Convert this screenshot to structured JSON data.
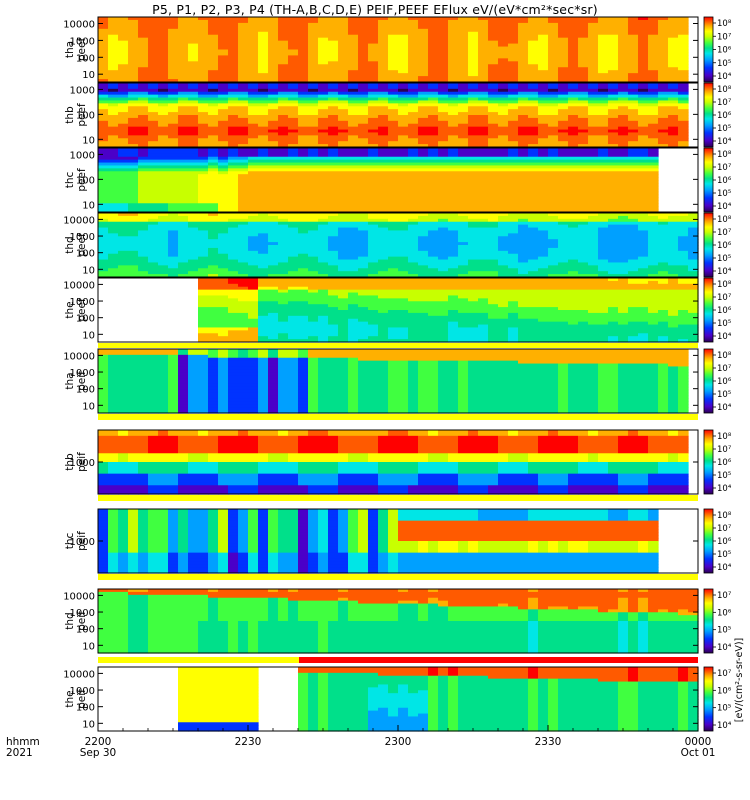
{
  "title": "P5, P1, P2, P3, P4 (TH-A,B,C,D,E) PEIF,PEEF EFlux eV/(eV*cm²*sec*sr)",
  "colors": {
    "colormap": [
      "#2a0054",
      "#4b00c8",
      "#0033ff",
      "#00a0ff",
      "#00e6e6",
      "#00e08a",
      "#40ff40",
      "#c8ff00",
      "#ffff00",
      "#ffb000",
      "#ff5a00",
      "#ff0000"
    ],
    "bar_yellow": "#ffff00",
    "bar_red": "#ff0000"
  },
  "x_axis": {
    "row_label_1": "hhmm",
    "row_label_2": "2021",
    "ticks": [
      {
        "label": "2200",
        "date": "Sep 30",
        "min": 0
      },
      {
        "label": "2230",
        "date": "",
        "min": 30
      },
      {
        "label": "2300",
        "date": "",
        "min": 60
      },
      {
        "label": "2330",
        "date": "",
        "min": 90
      },
      {
        "label": "0000",
        "date": "Oct 01",
        "min": 120
      }
    ]
  },
  "colorbar_unit_text": "[eV/(cm²-s-sr-eV)]",
  "chart_data": {
    "type": "heatmap",
    "x_range_minutes": [
      0,
      120
    ],
    "panels": [
      {
        "probe": "tha",
        "species": "peef",
        "ylabel_1": "tha",
        "ylabel_2": "peef",
        "y_ticks": [
          "10",
          "100",
          "1000",
          "10000"
        ],
        "cbar_labels": [
          "10⁴",
          "10⁵",
          "10⁶",
          "10⁷",
          "10⁸"
        ],
        "scale": "log",
        "bar": "none",
        "pattern": "tha_e"
      },
      {
        "probe": "thb",
        "species": "peef",
        "ylabel_1": "thb",
        "ylabel_2": "peef",
        "y_ticks": [
          "10",
          "100",
          "1000"
        ],
        "cbar_labels": [
          "10⁴",
          "10⁵",
          "10⁶",
          "10⁷",
          "10⁸"
        ],
        "scale": "log",
        "bar": "none",
        "pattern": "thb_e"
      },
      {
        "probe": "thc",
        "species": "peef",
        "ylabel_1": "thc",
        "ylabel_2": "peef",
        "y_ticks": [
          "10",
          "100",
          "1000"
        ],
        "cbar_labels": [
          "10⁴",
          "10⁵",
          "10⁶",
          "10⁷",
          "10⁸"
        ],
        "scale": "log",
        "bar": "none",
        "pattern": "thc_e"
      },
      {
        "probe": "thd",
        "species": "peef",
        "ylabel_1": "thd",
        "ylabel_2": "peef",
        "y_ticks": [
          "10",
          "100",
          "1000",
          "10000"
        ],
        "cbar_labels": [
          "10⁴",
          "10⁵",
          "10⁶",
          "10⁷",
          "10⁸"
        ],
        "scale": "log",
        "bar": "none",
        "pattern": "thd_e"
      },
      {
        "probe": "the",
        "species": "peef",
        "ylabel_1": "the",
        "ylabel_2": "peef",
        "y_ticks": [
          "10",
          "100",
          "1000",
          "10000"
        ],
        "cbar_labels": [
          "10⁴",
          "10⁵",
          "10⁶",
          "10⁷",
          "10⁸"
        ],
        "scale": "log",
        "bar": "yellow",
        "pattern": "the_e"
      },
      {
        "probe": "tha",
        "species": "peif",
        "ylabel_1": "tha",
        "ylabel_2": "peif",
        "y_ticks": [
          "10",
          "100",
          "1000",
          "10000"
        ],
        "cbar_labels": [
          "10⁴",
          "10⁵",
          "10⁶",
          "10⁷",
          "10⁸"
        ],
        "scale": "log",
        "bar": "yellow",
        "pattern": "tha_i"
      },
      {
        "probe": "thb",
        "species": "peif",
        "ylabel_1": "thb",
        "ylabel_2": "peif",
        "y_ticks": [
          "1000"
        ],
        "cbar_labels": [
          "10⁴",
          "10⁵",
          "10⁶",
          "10⁷",
          "10⁸"
        ],
        "scale": "log",
        "bar": "yellow",
        "pattern": "thb_i"
      },
      {
        "probe": "thc",
        "species": "peif",
        "ylabel_1": "thc",
        "ylabel_2": "peif",
        "y_ticks": [
          "1000"
        ],
        "cbar_labels": [
          "10⁴",
          "10⁵",
          "10⁶",
          "10⁷",
          "10⁸"
        ],
        "scale": "log",
        "bar": "yellow",
        "pattern": "thc_i"
      },
      {
        "probe": "thd",
        "species": "peif",
        "ylabel_1": "thd",
        "ylabel_2": "peif",
        "y_ticks": [
          "10",
          "100",
          "1000",
          "10000"
        ],
        "cbar_labels": [
          "10⁴",
          "10⁵",
          "10⁶",
          "10⁷"
        ],
        "scale": "log",
        "bar": "yellow_red",
        "pattern": "thd_i"
      },
      {
        "probe": "the",
        "species": "peif",
        "ylabel_1": "the",
        "ylabel_2": "peif",
        "y_ticks": [
          "10",
          "100",
          "1000",
          "10000"
        ],
        "cbar_labels": [
          "10⁴",
          "10⁵",
          "10⁶",
          "10⁷"
        ],
        "scale": "log",
        "bar": "none",
        "pattern": "the_i"
      }
    ]
  }
}
